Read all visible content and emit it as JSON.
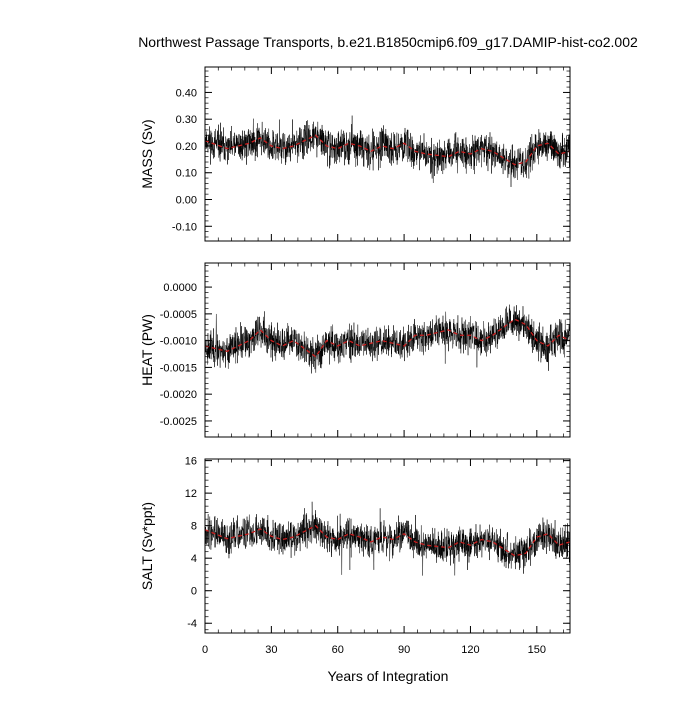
{
  "title": "Northwest Passage Transports, b.e21.B1850cmip6.f09_g17.DAMIP-hist-co2.002",
  "xlabel": "Years of Integration",
  "chart_data": {
    "type": "line",
    "x_range": [
      0,
      165
    ],
    "x_ticks": [
      0,
      30,
      60,
      90,
      120,
      150
    ],
    "colors": {
      "raw": "#000000",
      "smoothed": "#c81e1e"
    },
    "panels": [
      {
        "ylabel": "MASS (Sv)",
        "ylim": [
          -0.155,
          0.495
        ],
        "yticks": [
          -0.1,
          0.0,
          0.1,
          0.2,
          0.3,
          0.4
        ],
        "ytick_labels": [
          "-0.10",
          "0.00",
          "0.10",
          "0.20",
          "0.30",
          "0.40"
        ],
        "smoothed": [
          [
            0,
            0.22
          ],
          [
            10,
            0.19
          ],
          [
            20,
            0.21
          ],
          [
            25,
            0.23
          ],
          [
            30,
            0.2
          ],
          [
            35,
            0.19
          ],
          [
            40,
            0.2
          ],
          [
            50,
            0.24
          ],
          [
            55,
            0.2
          ],
          [
            60,
            0.19
          ],
          [
            65,
            0.21
          ],
          [
            70,
            0.2
          ],
          [
            75,
            0.18
          ],
          [
            80,
            0.2
          ],
          [
            85,
            0.19
          ],
          [
            90,
            0.21
          ],
          [
            95,
            0.18
          ],
          [
            100,
            0.17
          ],
          [
            110,
            0.16
          ],
          [
            115,
            0.18
          ],
          [
            120,
            0.17
          ],
          [
            125,
            0.19
          ],
          [
            130,
            0.18
          ],
          [
            140,
            0.13
          ],
          [
            145,
            0.14
          ],
          [
            150,
            0.2
          ],
          [
            155,
            0.21
          ],
          [
            160,
            0.17
          ],
          [
            165,
            0.18
          ]
        ],
        "noise_amp": 0.09,
        "seed": 11
      },
      {
        "ylabel": "HEAT (PW)",
        "ylim": [
          -0.0028,
          0.00045
        ],
        "yticks": [
          -0.0025,
          -0.002,
          -0.0015,
          -0.001,
          -0.0005,
          0.0
        ],
        "ytick_labels": [
          "-0.0025",
          "-0.0020",
          "-0.0015",
          "-0.0010",
          "-0.0005",
          "0.0000"
        ],
        "smoothed": [
          [
            0,
            -0.0011
          ],
          [
            10,
            -0.0012
          ],
          [
            20,
            -0.001
          ],
          [
            25,
            -0.0008
          ],
          [
            30,
            -0.001
          ],
          [
            35,
            -0.0011
          ],
          [
            40,
            -0.001
          ],
          [
            50,
            -0.0013
          ],
          [
            55,
            -0.001
          ],
          [
            60,
            -0.0011
          ],
          [
            65,
            -0.001
          ],
          [
            70,
            -0.0011
          ],
          [
            80,
            -0.001
          ],
          [
            90,
            -0.0011
          ],
          [
            95,
            -0.0009
          ],
          [
            100,
            -0.0009
          ],
          [
            110,
            -0.0008
          ],
          [
            115,
            -0.0009
          ],
          [
            120,
            -0.0009
          ],
          [
            125,
            -0.001
          ],
          [
            130,
            -0.0009
          ],
          [
            140,
            -0.0006
          ],
          [
            145,
            -0.0007
          ],
          [
            150,
            -0.001
          ],
          [
            155,
            -0.0011
          ],
          [
            160,
            -0.0009
          ],
          [
            165,
            -0.001
          ]
        ],
        "noise_amp": 0.00045,
        "seed": 23
      },
      {
        "ylabel": "SALT (Sv*ppt)",
        "ylim": [
          -5.2,
          16.2
        ],
        "yticks": [
          -4,
          0,
          4,
          8,
          12,
          16
        ],
        "ytick_labels": [
          "-4",
          "0",
          "4",
          "8",
          "12",
          "16"
        ],
        "smoothed": [
          [
            0,
            7.5
          ],
          [
            10,
            6.4
          ],
          [
            20,
            7.0
          ],
          [
            25,
            7.6
          ],
          [
            30,
            6.7
          ],
          [
            35,
            6.3
          ],
          [
            40,
            6.6
          ],
          [
            50,
            8.0
          ],
          [
            55,
            6.6
          ],
          [
            60,
            6.3
          ],
          [
            65,
            7.0
          ],
          [
            70,
            6.6
          ],
          [
            75,
            6.0
          ],
          [
            80,
            6.6
          ],
          [
            85,
            6.3
          ],
          [
            90,
            7.0
          ],
          [
            95,
            6.0
          ],
          [
            100,
            5.6
          ],
          [
            110,
            5.3
          ],
          [
            115,
            6.0
          ],
          [
            120,
            5.6
          ],
          [
            125,
            6.3
          ],
          [
            130,
            6.0
          ],
          [
            140,
            4.3
          ],
          [
            145,
            4.6
          ],
          [
            150,
            6.6
          ],
          [
            155,
            7.0
          ],
          [
            160,
            5.6
          ],
          [
            165,
            6.0
          ]
        ],
        "noise_amp": 3.0,
        "seed": 37
      }
    ]
  }
}
